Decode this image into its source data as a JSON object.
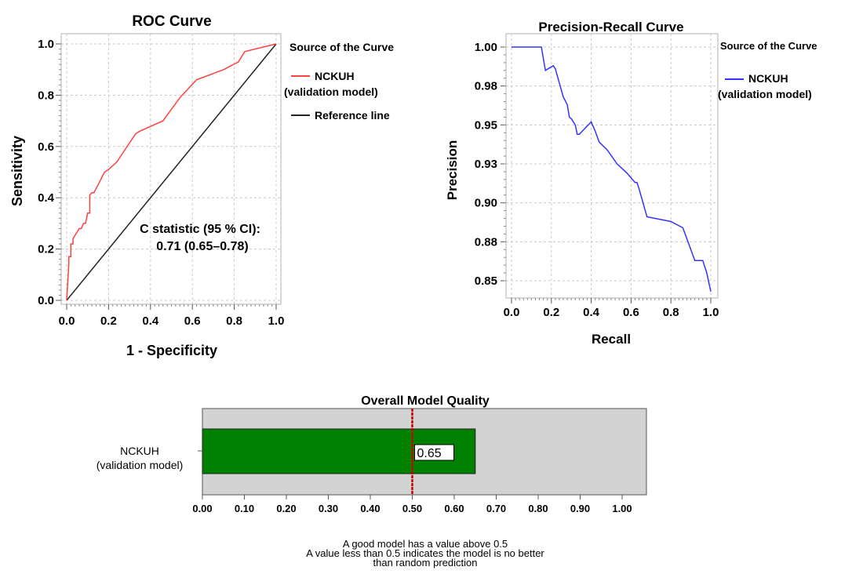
{
  "chart_data": [
    {
      "type": "line",
      "title": "ROC Curve",
      "xlabel": "1 - Specificity",
      "ylabel": "Sensitivity",
      "xlim": [
        0,
        1
      ],
      "ylim": [
        0,
        1
      ],
      "x_ticks": [
        "0.0",
        "0.2",
        "0.4",
        "0.6",
        "0.8",
        "1.0"
      ],
      "y_ticks": [
        "0.0",
        "0.2",
        "0.4",
        "0.6",
        "0.8",
        "1.0"
      ],
      "grid": true,
      "legend_title": "Source of the Curve",
      "legend_placement": "right",
      "series": [
        {
          "name": "NCKUH",
          "name_line2": "(validation model)",
          "color": "#ff4040",
          "x": [
            0.0,
            0.01,
            0.01,
            0.02,
            0.02,
            0.03,
            0.03,
            0.06,
            0.07,
            0.08,
            0.09,
            0.1,
            0.11,
            0.11,
            0.12,
            0.13,
            0.15,
            0.18,
            0.2,
            0.24,
            0.28,
            0.33,
            0.35,
            0.46,
            0.54,
            0.62,
            0.75,
            0.82,
            0.85,
            1.0
          ],
          "y": [
            0.0,
            0.14,
            0.17,
            0.17,
            0.22,
            0.22,
            0.24,
            0.28,
            0.28,
            0.3,
            0.3,
            0.34,
            0.34,
            0.41,
            0.42,
            0.42,
            0.45,
            0.5,
            0.51,
            0.54,
            0.59,
            0.65,
            0.66,
            0.7,
            0.79,
            0.86,
            0.9,
            0.93,
            0.97,
            1.0
          ]
        },
        {
          "name": "Reference line",
          "color": "#222222",
          "x": [
            0,
            1
          ],
          "y": [
            0,
            1
          ]
        }
      ],
      "annotation_line1": "C statistic (95 % CI):",
      "annotation_line2": "0.71 (0.65–0.78)"
    },
    {
      "type": "line",
      "title": "Precision-Recall Curve",
      "xlabel": "Recall",
      "ylabel": "Precision",
      "xlim": [
        0,
        1
      ],
      "ylim": [
        0.84,
        1.0
      ],
      "x_ticks": [
        "0.0",
        "0.2",
        "0.4",
        "0.6",
        "0.8",
        "1.0"
      ],
      "y_tick_values": [
        0.85,
        0.875,
        0.9,
        0.925,
        0.95,
        0.975,
        1.0
      ],
      "y_ticks": [
        "0.85",
        "0.88",
        "0.90",
        "0.93",
        "0.95",
        "0.98",
        "1.00"
      ],
      "grid": true,
      "legend_title": "Source of the Curve",
      "legend_placement": "right",
      "series": [
        {
          "name": "NCKUH",
          "name_line2": "(validation model)",
          "color": "#3333ff",
          "x": [
            0.0,
            0.15,
            0.17,
            0.21,
            0.22,
            0.26,
            0.28,
            0.29,
            0.3,
            0.32,
            0.33,
            0.34,
            0.4,
            0.42,
            0.44,
            0.48,
            0.53,
            0.58,
            0.62,
            0.63,
            0.64,
            0.68,
            0.8,
            0.86,
            0.92,
            0.96,
            0.98,
            1.0
          ],
          "y": [
            1.0,
            1.0,
            0.985,
            0.988,
            0.986,
            0.968,
            0.963,
            0.955,
            0.954,
            0.95,
            0.944,
            0.944,
            0.952,
            0.946,
            0.939,
            0.934,
            0.925,
            0.919,
            0.913,
            0.913,
            0.909,
            0.891,
            0.888,
            0.884,
            0.863,
            0.863,
            0.855,
            0.843
          ]
        }
      ]
    },
    {
      "type": "bar",
      "title": "Overall Model Quality",
      "orientation": "horizontal",
      "categories": [
        "NCKUH"
      ],
      "category_line2": "(validation model)",
      "values": [
        0.65
      ],
      "value_label": "0.65",
      "xlim": [
        0,
        1.05
      ],
      "x_ticks": [
        "0.00",
        "0.10",
        "0.20",
        "0.30",
        "0.40",
        "0.50",
        "0.60",
        "0.70",
        "0.80",
        "0.90",
        "1.00"
      ],
      "reference_value": 0.5,
      "bar_color": "#008000",
      "background_color": "#d3d3d3",
      "reference_color": "#cc0000",
      "note_line1": "A good model has a value above 0.5",
      "note_line2": "A value less than 0.5 indicates the model is no better",
      "note_line3": "than random prediction"
    }
  ]
}
